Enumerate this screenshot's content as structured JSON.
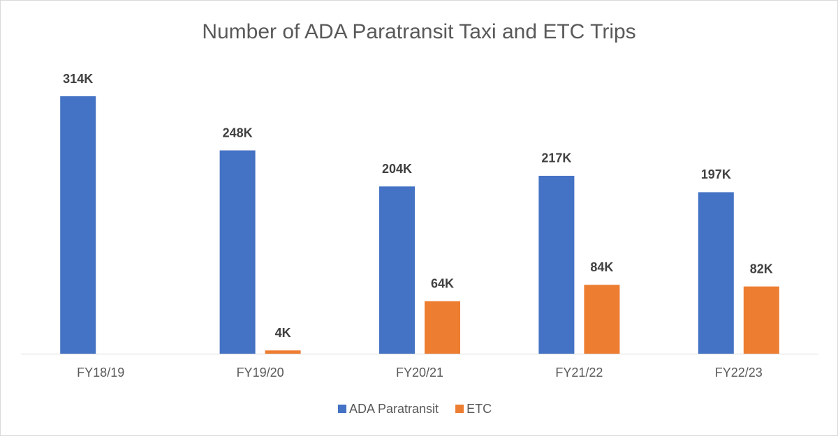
{
  "chart_data": {
    "type": "bar",
    "title": "Number of ADA Paratransit Taxi and ETC Trips",
    "categories": [
      "FY18/19",
      "FY19/20",
      "FY20/21",
      "FY21/22",
      "FY22/23"
    ],
    "series": [
      {
        "name": "ADA Paratransit",
        "color": "#4472c4",
        "values": [
          314,
          248,
          204,
          217,
          197
        ],
        "value_labels": [
          "314K",
          "248K",
          "204K",
          "217K",
          "197K"
        ]
      },
      {
        "name": "ETC",
        "color": "#ed7d31",
        "values": [
          null,
          4,
          64,
          84,
          82
        ],
        "value_labels": [
          null,
          "4K",
          "64K",
          "84K",
          "82K"
        ]
      }
    ],
    "legend": "bottom"
  }
}
